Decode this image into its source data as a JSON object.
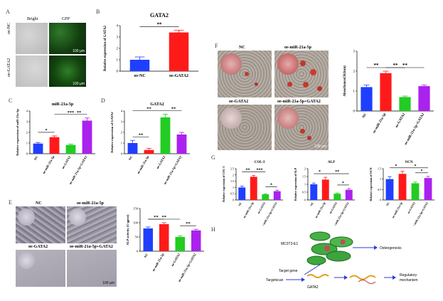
{
  "panel_labels": {
    "A": "A",
    "B": "B",
    "C": "C",
    "D": "D",
    "E": "E",
    "F": "F",
    "G": "G",
    "H": "H"
  },
  "panel_A": {
    "col_bright": "Bright",
    "col_gfp": "GFP",
    "row1": "oe-NC",
    "row2": "oe-GATA2",
    "scale": "100 μm"
  },
  "panel_E": {
    "nc": "NC",
    "oe_mir": "oe-miR-21a-5p",
    "oe_gata2": "oe-GATA2",
    "combo": "oe-miR-21a-5p+GATA2",
    "scale": "100 μm"
  },
  "panel_F": {
    "nc": "NC",
    "oe_mir": "oe-miR-21a-5p",
    "oe_gata2": "oe-GATA2",
    "combo": "oe-miR-21a-5p+GATA2",
    "scale": "100 μm"
  },
  "panel_H": {
    "cell": "MC3T3-E1",
    "osteo": "Osteogenesis",
    "target_gene": "Target gene",
    "targetscan": "Targetscan",
    "gata2": "GATA2",
    "regulatory": "Regulatory",
    "mechanism": "mechanism"
  },
  "colors": {
    "blue": "#1f3fff",
    "red": "#ff1a1a",
    "green": "#22cc22",
    "purple": "#aa22ee"
  },
  "chart_data": [
    {
      "id": "B",
      "type": "bar",
      "title": "GATA2",
      "ylabel": "Relative expression of GATA2",
      "categories": [
        "oe-NC",
        "oe-GATA2"
      ],
      "values": [
        1.0,
        3.4
      ],
      "errors": [
        0.25,
        0.2
      ],
      "ylim": [
        0,
        4
      ],
      "yticks": [
        0,
        1,
        2,
        3,
        4
      ],
      "sig": [
        {
          "from": 0,
          "to": 1,
          "label": "**"
        }
      ]
    },
    {
      "id": "C",
      "type": "bar",
      "title": "miR-21a-5p",
      "ylabel": "Relative expression of miR-21a-5p",
      "categories": [
        "NC",
        "oe-miR-21a-5p",
        "oe-GATA2",
        "oe-miR-21a-5p+GATA2"
      ],
      "values": [
        0.95,
        1.55,
        0.82,
        3.1
      ],
      "errors": [
        0.1,
        0.12,
        0.08,
        0.25
      ],
      "ylim": [
        0,
        4
      ],
      "yticks": [
        0,
        1,
        2,
        3,
        4
      ],
      "sig": [
        {
          "from": 0,
          "to": 1,
          "label": "*"
        },
        {
          "from": 1,
          "to": 3,
          "label": "***"
        },
        {
          "from": 2,
          "to": 3,
          "label": "**"
        }
      ]
    },
    {
      "id": "D",
      "type": "bar",
      "title": "GATA2",
      "ylabel": "Relative expression of GATA2",
      "categories": [
        "NC",
        "oe-miR-21a-5p",
        "oe-GATA2",
        "oe-miR-21a-5p+GATA2"
      ],
      "values": [
        1.0,
        0.35,
        3.4,
        1.8
      ],
      "errors": [
        0.25,
        0.15,
        0.3,
        0.2
      ],
      "ylim": [
        0,
        4
      ],
      "yticks": [
        0,
        1,
        2,
        3,
        4
      ],
      "sig": [
        {
          "from": 0,
          "to": 1,
          "label": "**"
        },
        {
          "from": 0,
          "to": 2,
          "label": "**"
        },
        {
          "from": 2,
          "to": 3,
          "label": "**"
        }
      ]
    },
    {
      "id": "E",
      "type": "bar",
      "title": "",
      "ylabel": "ALP activity (U/gprot)",
      "categories": [
        "NC",
        "oe-miR-21a-5p",
        "oe-GATA2",
        "oe-miR-21a-5p+GATA2"
      ],
      "values": [
        80,
        95,
        50,
        73
      ],
      "errors": [
        5,
        5,
        4,
        4
      ],
      "ylim": [
        0,
        150
      ],
      "yticks": [
        0,
        50,
        100,
        150
      ],
      "sig": [
        {
          "from": 0,
          "to": 1,
          "label": "**"
        },
        {
          "from": 0,
          "to": 2,
          "label": "**"
        },
        {
          "from": 2,
          "to": 3,
          "label": "**"
        }
      ]
    },
    {
      "id": "F",
      "type": "bar",
      "title": "",
      "ylabel": "Absorbance(562nm)",
      "categories": [
        "NC",
        "oe-miR-21a-5p",
        "oe-GATA2",
        "oe-miR-21a-5p+GATA2"
      ],
      "values": [
        1.2,
        1.9,
        0.7,
        1.25
      ],
      "errors": [
        0.1,
        0.1,
        0.05,
        0.06
      ],
      "ylim": [
        0,
        3
      ],
      "yticks": [
        0,
        1,
        2,
        3
      ],
      "sig": [
        {
          "from": 0,
          "to": 1,
          "label": "**"
        },
        {
          "from": 1,
          "to": 2,
          "label": "**"
        },
        {
          "from": 1,
          "to": 3,
          "label": "**"
        }
      ]
    },
    {
      "id": "G1",
      "type": "bar",
      "title": "COL-I",
      "ylabel": "Relative expression of COL-I",
      "categories": [
        "NC",
        "oe-miR-21a-5p",
        "oe-GATA2",
        "oe-miR-21a-5p+GATA2"
      ],
      "values": [
        1.0,
        1.85,
        0.45,
        0.7
      ],
      "errors": [
        0.1,
        0.12,
        0.05,
        0.08
      ],
      "ylim": [
        0,
        2.5
      ],
      "yticks": [
        0,
        0.5,
        1,
        1.5,
        2,
        2.5
      ],
      "sig": [
        {
          "from": 0,
          "to": 1,
          "label": "**"
        },
        {
          "from": 1,
          "to": 2,
          "label": "***"
        },
        {
          "from": 2,
          "to": 3,
          "label": "*"
        }
      ]
    },
    {
      "id": "G2",
      "type": "bar",
      "title": "ALP",
      "ylabel": "Relative expression of ALP",
      "categories": [
        "NC",
        "oe-miR-21a-5p",
        "oe-GATA2",
        "oe-miR-21a-5p+GATA2"
      ],
      "values": [
        1.0,
        1.3,
        0.4,
        0.65
      ],
      "errors": [
        0.08,
        0.15,
        0.05,
        0.08
      ],
      "ylim": [
        0,
        2
      ],
      "yticks": [
        0,
        0.5,
        1,
        1.5,
        2
      ],
      "sig": [
        {
          "from": 0,
          "to": 1,
          "label": "*"
        },
        {
          "from": 1,
          "to": 3,
          "label": "**"
        },
        {
          "from": 2,
          "to": 3,
          "label": "*"
        }
      ]
    },
    {
      "id": "G3",
      "type": "bar",
      "title": "OCN",
      "ylabel": "Relative expression of OCN",
      "categories": [
        "NC",
        "oe-miR-21a-5p",
        "oe-GATA2",
        "oe-miR-21a-5p+GATA2"
      ],
      "values": [
        1.0,
        1.25,
        0.8,
        1.05
      ],
      "errors": [
        0.12,
        0.12,
        0.06,
        0.08
      ],
      "ylim": [
        0,
        1.5
      ],
      "yticks": [
        0,
        0.5,
        1,
        1.5
      ],
      "sig": [
        {
          "from": 0,
          "to": 1,
          "label": "*"
        },
        {
          "from": 1,
          "to": 3,
          "label": "*"
        },
        {
          "from": 2,
          "to": 3,
          "label": "*"
        }
      ]
    }
  ]
}
